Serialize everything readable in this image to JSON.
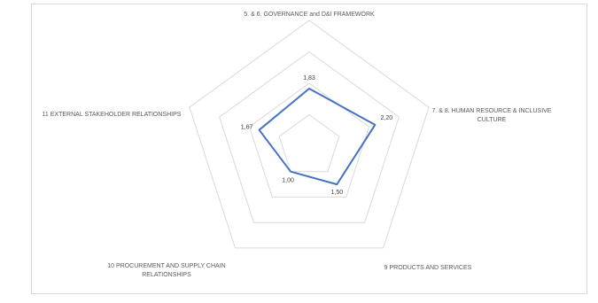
{
  "chart_data": {
    "type": "radar",
    "title": "",
    "categories": [
      "5. & 6. GOVERNANCE and D&I FRAMEWORK",
      "7. & 8. HUMAN RESOURCE & INCLUSIVE CULTURE",
      "9 PRODUCTS AND SERVICES",
      "10 PROCUREMENT AND SUPPLY CHAIN RELATIONSHIPS",
      "11 EXTERNAL STAKEHOLDER RELATIONSHIPS"
    ],
    "category_lines": [
      [
        "5. & 6. GOVERNANCE and D&I FRAMEWORK"
      ],
      [
        "7. & 8. HUMAN RESOURCE & INCLUSIVE",
        "CULTURE"
      ],
      [
        "9 PRODUCTS AND SERVICES"
      ],
      [
        "10 PROCUREMENT AND SUPPLY CHAIN",
        "RELATIONSHIPS"
      ],
      [
        "11 EXTERNAL STAKEHOLDER RELATIONSHIPS"
      ]
    ],
    "series": [
      {
        "values": [
          1.83,
          2.2,
          1.5,
          1.0,
          1.67
        ],
        "labels": [
          "1,83",
          "2,20",
          "1,50",
          "1,00",
          "1,67"
        ],
        "color": "#4472c4"
      }
    ],
    "rlim": [
      0,
      4
    ],
    "grid_levels": 4,
    "grid": true,
    "gridline_color": "#d9d9d9",
    "legend": "none"
  }
}
